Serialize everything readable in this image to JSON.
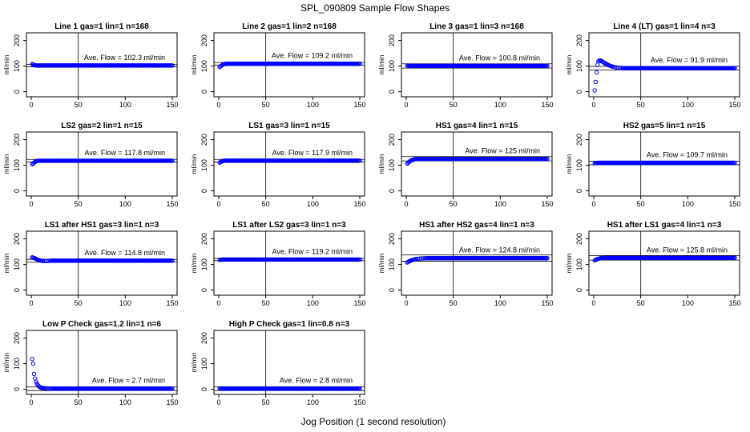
{
  "figure": {
    "title": "SPL_090809  Sample Flow Shapes",
    "xlabel": "Jog Position (1 second resolution)"
  },
  "chart_data": [
    {
      "type": "scatter",
      "title": "Line 1 gas=1 lin=1 n=168",
      "ylabel": "ml/min",
      "xlim": [
        0,
        150
      ],
      "ylim": [
        -20,
        230
      ],
      "xticks": [
        0,
        50,
        100,
        150
      ],
      "yticks": [
        0,
        100,
        200
      ],
      "vline_x": 50,
      "annotation": "Ave. Flow = 102.3  ml/min",
      "mean": 102.3,
      "band": [
        97,
        107
      ],
      "series": [
        {
          "x": [
            1,
            2,
            3,
            4,
            5
          ],
          "y": [
            108,
            106,
            104,
            103,
            102.5
          ]
        }
      ],
      "plateau": {
        "from": 6,
        "to": 150,
        "y": 102.3
      }
    },
    {
      "type": "scatter",
      "title": "Line 2 gas=1 lin=2 n=168",
      "ylabel": "ml/min",
      "xlim": [
        0,
        150
      ],
      "ylim": [
        -20,
        230
      ],
      "xticks": [
        0,
        50,
        100,
        150
      ],
      "yticks": [
        0,
        100,
        200
      ],
      "vline_x": 50,
      "annotation": "Ave. Flow = 109.2  ml/min",
      "mean": 109.2,
      "band": [
        104,
        114
      ],
      "series": [
        {
          "x": [
            1,
            2,
            3,
            4,
            5,
            6,
            7
          ],
          "y": [
            96,
            99,
            102,
            105,
            107,
            108,
            108.5
          ]
        }
      ],
      "plateau": {
        "from": 8,
        "to": 150,
        "y": 109.2
      }
    },
    {
      "type": "scatter",
      "title": "Line 3 gas=1 lin=3 n=168",
      "ylabel": "ml/min",
      "xlim": [
        0,
        150
      ],
      "ylim": [
        -20,
        230
      ],
      "xticks": [
        0,
        50,
        100,
        150
      ],
      "yticks": [
        0,
        100,
        200
      ],
      "vline_x": 50,
      "annotation": "Ave. Flow = 100.8  ml/min",
      "mean": 100.8,
      "band": [
        92,
        109
      ],
      "series": [
        {
          "x": [
            1,
            2,
            3
          ],
          "y": [
            102,
            101.5,
            101
          ]
        }
      ],
      "plateau": {
        "from": 4,
        "to": 150,
        "y": 100.8
      }
    },
    {
      "type": "scatter",
      "title": "Line 4 (LT) gas=1 lin=4 n=3",
      "ylabel": "ml/min",
      "xlim": [
        0,
        150
      ],
      "ylim": [
        -20,
        230
      ],
      "xticks": [
        0,
        50,
        100,
        150
      ],
      "yticks": [
        0,
        100,
        200
      ],
      "vline_x": 50,
      "annotation": "Ave. Flow = 91.9  ml/min",
      "mean": 91.9,
      "band": [
        85,
        99
      ],
      "series": [
        {
          "x": [
            1,
            2,
            3,
            4,
            5,
            6,
            7,
            8,
            9,
            10,
            11,
            12,
            13,
            14,
            15,
            16,
            17,
            18,
            19,
            20,
            22,
            24,
            26,
            28,
            30
          ],
          "y": [
            5,
            38,
            75,
            105,
            118,
            122,
            122,
            120,
            118,
            116,
            113,
            111,
            109,
            107,
            105,
            103,
            102,
            100,
            99,
            98,
            96,
            95,
            94,
            93,
            92.5
          ]
        }
      ],
      "plateau": {
        "from": 31,
        "to": 150,
        "y": 91.9
      }
    },
    {
      "type": "scatter",
      "title": "LS2 gas=2 lin=1 n=15",
      "ylabel": "ml/min",
      "xlim": [
        0,
        150
      ],
      "ylim": [
        -20,
        230
      ],
      "xticks": [
        0,
        50,
        100,
        150
      ],
      "yticks": [
        0,
        100,
        200
      ],
      "vline_x": 50,
      "annotation": "Ave. Flow = 117.8  ml/min",
      "mean": 117.8,
      "band": [
        113,
        123
      ],
      "series": [
        {
          "x": [
            1,
            2,
            3,
            4,
            5,
            6,
            7
          ],
          "y": [
            104,
            107,
            110,
            113,
            115,
            116.5,
            117.3
          ]
        }
      ],
      "plateau": {
        "from": 8,
        "to": 150,
        "y": 117.8
      }
    },
    {
      "type": "scatter",
      "title": "LS1 gas=3 lin=1 n=15",
      "ylabel": "ml/min",
      "xlim": [
        0,
        150
      ],
      "ylim": [
        -20,
        230
      ],
      "xticks": [
        0,
        50,
        100,
        150
      ],
      "yticks": [
        0,
        100,
        200
      ],
      "vline_x": 50,
      "annotation": "Ave. Flow = 117.9  ml/min",
      "mean": 117.9,
      "band": [
        113,
        123
      ],
      "series": [
        {
          "x": [
            1,
            2,
            3,
            4,
            5
          ],
          "y": [
            110,
            113,
            115,
            116.5,
            117.4
          ]
        }
      ],
      "plateau": {
        "from": 6,
        "to": 150,
        "y": 117.9
      }
    },
    {
      "type": "scatter",
      "title": "HS1 gas=4 lin=1 n=15",
      "ylabel": "ml/min",
      "xlim": [
        0,
        150
      ],
      "ylim": [
        -20,
        230
      ],
      "xticks": [
        0,
        50,
        100,
        150
      ],
      "yticks": [
        0,
        100,
        200
      ],
      "vline_x": 50,
      "annotation": "Ave. Flow = 125  ml/min",
      "mean": 125,
      "band": [
        117,
        134
      ],
      "series": [
        {
          "x": [
            1,
            2,
            3,
            4,
            5,
            6,
            7,
            8,
            9,
            10
          ],
          "y": [
            106,
            110,
            113,
            116,
            118,
            120,
            121.5,
            122.5,
            123.5,
            124.3
          ]
        }
      ],
      "plateau": {
        "from": 11,
        "to": 150,
        "y": 125
      }
    },
    {
      "type": "scatter",
      "title": "HS2 gas=5 lin=1 n=15",
      "ylabel": "ml/min",
      "xlim": [
        0,
        150
      ],
      "ylim": [
        -20,
        230
      ],
      "xticks": [
        0,
        50,
        100,
        150
      ],
      "yticks": [
        0,
        100,
        200
      ],
      "vline_x": 50,
      "annotation": "Ave. Flow = 109.7  ml/min",
      "mean": 109.7,
      "band": [
        102,
        116
      ],
      "series": [
        {
          "x": [
            1,
            2,
            3
          ],
          "y": [
            108,
            109,
            109.4
          ]
        }
      ],
      "plateau": {
        "from": 4,
        "to": 150,
        "y": 109.7
      }
    },
    {
      "type": "scatter",
      "title": "LS1 after HS1 gas=3 lin=1 n=3",
      "ylabel": "ml/min",
      "xlim": [
        0,
        150
      ],
      "ylim": [
        -20,
        230
      ],
      "xticks": [
        0,
        50,
        100,
        150
      ],
      "yticks": [
        0,
        100,
        200
      ],
      "vline_x": 50,
      "annotation": "Ave. Flow = 114.8  ml/min",
      "mean": 114.8,
      "band": [
        109,
        120
      ],
      "series": [
        {
          "x": [
            1,
            2,
            3,
            4,
            5,
            6,
            7,
            8,
            9,
            10,
            11,
            12,
            14,
            16,
            18,
            20
          ],
          "y": [
            128,
            127,
            125.5,
            124,
            122,
            120,
            118.5,
            117,
            116,
            115,
            114.5,
            114,
            113.8,
            113.8,
            114,
            114.3
          ]
        }
      ],
      "plateau": {
        "from": 21,
        "to": 150,
        "y": 114.8
      }
    },
    {
      "type": "scatter",
      "title": "LS1 after LS2 gas=3 lin=1 n=3",
      "ylabel": "ml/min",
      "xlim": [
        0,
        150
      ],
      "ylim": [
        -20,
        230
      ],
      "xticks": [
        0,
        50,
        100,
        150
      ],
      "yticks": [
        0,
        100,
        200
      ],
      "vline_x": 50,
      "annotation": "Ave. Flow = 119.2  ml/min",
      "mean": 119.2,
      "band": [
        115,
        124
      ],
      "series": [
        {
          "x": [
            1,
            2,
            3
          ],
          "y": [
            118,
            118.7,
            119
          ]
        }
      ],
      "plateau": {
        "from": 4,
        "to": 150,
        "y": 119.2
      }
    },
    {
      "type": "scatter",
      "title": "HS1 after HS2 gas=4 lin=1 n=3",
      "ylabel": "ml/min",
      "xlim": [
        0,
        150
      ],
      "ylim": [
        -20,
        230
      ],
      "xticks": [
        0,
        50,
        100,
        150
      ],
      "yticks": [
        0,
        100,
        200
      ],
      "vline_x": 50,
      "annotation": "Ave. Flow = 124.8  ml/min",
      "mean": 124.8,
      "band": [
        113,
        137
      ],
      "series": [
        {
          "x": [
            1,
            2,
            3,
            4,
            5,
            6,
            7,
            8,
            9,
            10,
            12,
            14,
            16,
            18,
            20
          ],
          "y": [
            108,
            110,
            112,
            114,
            115.5,
            117,
            118,
            119,
            120,
            121,
            122,
            122.8,
            123.5,
            124,
            124.4
          ]
        }
      ],
      "plateau": {
        "from": 21,
        "to": 150,
        "y": 124.8
      }
    },
    {
      "type": "scatter",
      "title": "HS1 after LS1 gas=4 lin=1 n=3",
      "ylabel": "ml/min",
      "xlim": [
        0,
        150
      ],
      "ylim": [
        -20,
        230
      ],
      "xticks": [
        0,
        50,
        100,
        150
      ],
      "yticks": [
        0,
        100,
        200
      ],
      "vline_x": 50,
      "annotation": "Ave. Flow = 125.8  ml/min",
      "mean": 125.8,
      "band": [
        117,
        135
      ],
      "series": [
        {
          "x": [
            1,
            2,
            3,
            4,
            5,
            6,
            7,
            8,
            9,
            10
          ],
          "y": [
            116,
            118,
            120,
            121.5,
            122.5,
            123.5,
            124.3,
            124.8,
            125.2,
            125.5
          ]
        }
      ],
      "plateau": {
        "from": 11,
        "to": 150,
        "y": 125.8
      }
    },
    {
      "type": "scatter",
      "title": "Low P Check gas=1.2 lin=1 n=6",
      "ylabel": "ml/min",
      "xlim": [
        0,
        150
      ],
      "ylim": [
        -20,
        230
      ],
      "xticks": [
        0,
        50,
        100,
        150
      ],
      "yticks": [
        0,
        100,
        200
      ],
      "vline_x": 50,
      "annotation": "Ave. Flow = 2.7  ml/min",
      "mean": 2.7,
      "band": [
        -5,
        9
      ],
      "series": [
        {
          "x": [
            1,
            2,
            3,
            4,
            5,
            6,
            7,
            8,
            9,
            10,
            11,
            12,
            13,
            14,
            15,
            16,
            18,
            20
          ],
          "y": [
            118,
            100,
            60,
            42,
            30,
            22,
            16,
            12,
            9,
            7,
            6,
            5,
            4.5,
            4,
            3.8,
            3.5,
            3.2,
            3
          ]
        }
      ],
      "plateau": {
        "from": 21,
        "to": 150,
        "y": 2.7
      }
    },
    {
      "type": "scatter",
      "title": "High P Check gas=1 lin=0.8 n=3",
      "ylabel": "ml/min",
      "xlim": [
        0,
        150
      ],
      "ylim": [
        -20,
        230
      ],
      "xticks": [
        0,
        50,
        100,
        150
      ],
      "yticks": [
        0,
        100,
        200
      ],
      "vline_x": 50,
      "annotation": "Ave. Flow = 2.8  ml/min",
      "mean": 2.8,
      "band": [
        -5,
        10
      ],
      "series": [
        {
          "x": [
            1,
            2,
            3
          ],
          "y": [
            3.2,
            3,
            2.9
          ]
        }
      ],
      "plateau": {
        "from": 4,
        "to": 150,
        "y": 2.8
      }
    }
  ],
  "colors": {
    "points": "#0000ff",
    "axes": "#000000"
  }
}
